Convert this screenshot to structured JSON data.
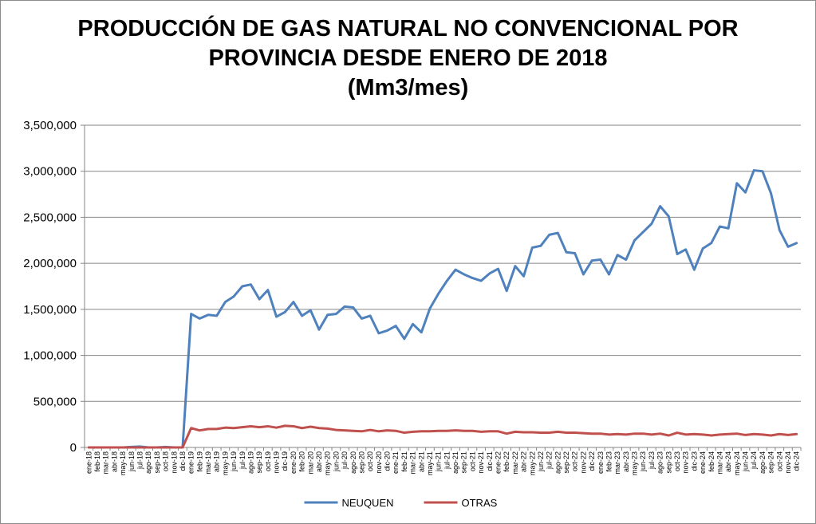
{
  "chart_data": {
    "type": "line",
    "title_lines": [
      "PRODUCCIÓN DE GAS NATURAL NO CONVENCIONAL POR",
      "PROVINCIA DESDE ENERO DE 2018",
      "(Mm3/mes)"
    ],
    "xlabel": "",
    "ylabel": "",
    "ylim": [
      0,
      3500000
    ],
    "yticks": [
      0,
      500000,
      1000000,
      1500000,
      2000000,
      2500000,
      3000000,
      3500000
    ],
    "ytick_labels": [
      "0",
      "500,000",
      "1,000,000",
      "1,500,000",
      "2,000,000",
      "2,500,000",
      "3,000,000",
      "3,500,000"
    ],
    "grid": true,
    "legend_position": "bottom",
    "categories": [
      "ene-18",
      "feb-18",
      "mar-18",
      "abr-18",
      "may-18",
      "jun-18",
      "jul-18",
      "ago-18",
      "sep-18",
      "oct-18",
      "nov-18",
      "dic-18",
      "ene-19",
      "feb-19",
      "mar-19",
      "abr-19",
      "may-19",
      "jun-19",
      "jul-19",
      "ago-19",
      "sep-19",
      "oct-19",
      "nov-19",
      "dic-19",
      "ene-20",
      "feb-20",
      "mar-20",
      "abr-20",
      "may-20",
      "jun-20",
      "jul-20",
      "ago-20",
      "sep-20",
      "oct-20",
      "nov-20",
      "dic-20",
      "ene-21",
      "feb-21",
      "mar-21",
      "abr-21",
      "may-21",
      "jun-21",
      "jul-21",
      "ago-21",
      "sep-21",
      "oct-21",
      "nov-21",
      "dic-21",
      "ene-22",
      "feb-22",
      "mar-22",
      "abr-22",
      "may-22",
      "jun-22",
      "jul-22",
      "ago-22",
      "sep-22",
      "oct-22",
      "nov-22",
      "dic-22",
      "ene-23",
      "feb-23",
      "mar-23",
      "abr-23",
      "may-23",
      "jun-23",
      "jul-23",
      "ago-23",
      "sep-23",
      "oct-23",
      "nov-23",
      "dic-23",
      "ene-24",
      "feb-24",
      "mar-24",
      "abr-24",
      "may-24",
      "jun-24",
      "jul-24",
      "ago-24",
      "sep-24",
      "oct-24",
      "nov-24",
      "dic-24"
    ],
    "series": [
      {
        "name": "NEUQUEN",
        "color": "#4f81bd",
        "values": [
          0,
          0,
          0,
          0,
          0,
          5000,
          10000,
          0,
          0,
          5000,
          0,
          0,
          1450000,
          1400000,
          1440000,
          1430000,
          1580000,
          1640000,
          1750000,
          1770000,
          1610000,
          1710000,
          1420000,
          1470000,
          1580000,
          1430000,
          1490000,
          1280000,
          1440000,
          1450000,
          1530000,
          1520000,
          1400000,
          1430000,
          1240000,
          1270000,
          1320000,
          1180000,
          1340000,
          1250000,
          1510000,
          1670000,
          1810000,
          1930000,
          1880000,
          1840000,
          1810000,
          1890000,
          1940000,
          1700000,
          1970000,
          1860000,
          2170000,
          2190000,
          2310000,
          2330000,
          2120000,
          2110000,
          1880000,
          2030000,
          2040000,
          1880000,
          2090000,
          2040000,
          2250000,
          2340000,
          2430000,
          2620000,
          2510000,
          2100000,
          2150000,
          1930000,
          2160000,
          2220000,
          2400000,
          2380000,
          2870000,
          2770000,
          3010000,
          3000000,
          2760000,
          2360000,
          2180000,
          2220000
        ]
      },
      {
        "name": "OTRAS",
        "color": "#c0504d",
        "values": [
          0,
          0,
          0,
          0,
          0,
          0,
          0,
          0,
          0,
          0,
          0,
          0,
          210000,
          185000,
          200000,
          200000,
          215000,
          210000,
          220000,
          230000,
          220000,
          230000,
          215000,
          235000,
          230000,
          210000,
          225000,
          210000,
          205000,
          190000,
          185000,
          180000,
          175000,
          190000,
          175000,
          185000,
          180000,
          160000,
          170000,
          175000,
          175000,
          180000,
          180000,
          185000,
          180000,
          180000,
          170000,
          175000,
          175000,
          150000,
          170000,
          165000,
          165000,
          160000,
          160000,
          170000,
          160000,
          160000,
          155000,
          150000,
          150000,
          140000,
          145000,
          140000,
          150000,
          150000,
          140000,
          150000,
          130000,
          160000,
          140000,
          145000,
          140000,
          130000,
          140000,
          145000,
          150000,
          135000,
          145000,
          140000,
          130000,
          145000,
          135000,
          145000
        ]
      }
    ]
  }
}
